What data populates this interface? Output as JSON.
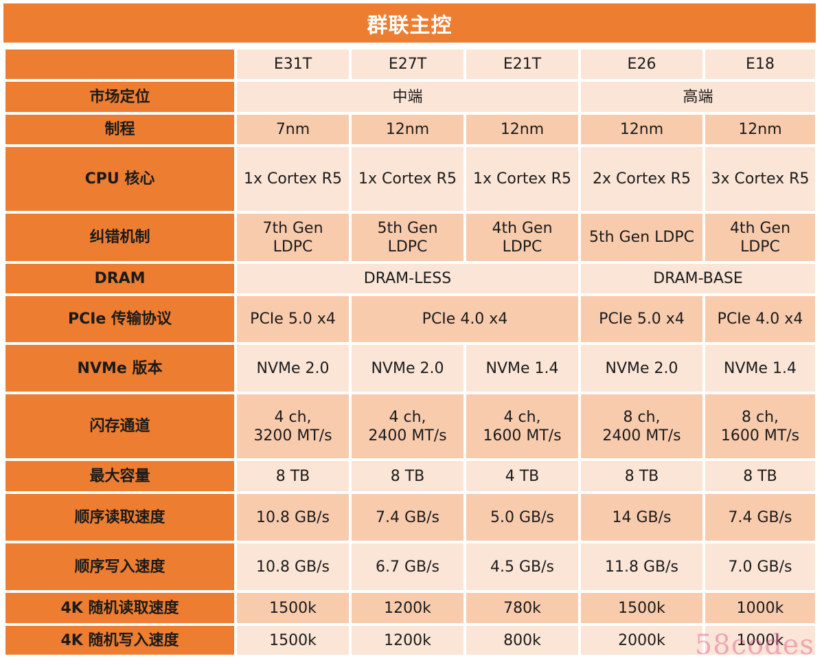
{
  "title": "群联主控",
  "columns": [
    "E31T",
    "E27T",
    "E21T",
    "E26",
    "E18"
  ],
  "rows": {
    "market": {
      "label": "市场定位",
      "mid": "中端",
      "high": "高端"
    },
    "process": {
      "label": "制程",
      "values": [
        "7nm",
        "12nm",
        "12nm",
        "12nm",
        "12nm"
      ]
    },
    "cpu": {
      "label": "CPU 核心",
      "values": [
        "1x Cortex R5",
        "1x Cortex R5",
        "1x Cortex R5",
        "2x Cortex R5",
        "3x Cortex R5"
      ]
    },
    "ecc": {
      "label": "纠错机制",
      "e31t": [
        "7th Gen",
        "LDPC"
      ],
      "e27t": [
        "5th Gen",
        "LDPC"
      ],
      "e21t": [
        "4th Gen",
        "LDPC"
      ],
      "e26": "5th Gen LDPC",
      "e18": [
        "4th Gen",
        "LDPC"
      ]
    },
    "dram": {
      "label": "DRAM",
      "left": "DRAM-LESS",
      "right": "DRAM-BASE"
    },
    "pcie": {
      "label": "PCIe 传输协议",
      "e31t": "PCIe 5.0 x4",
      "e27t_e21t": "PCIe 4.0 x4",
      "e26": "PCIe 5.0 x4",
      "e18": "PCIe 4.0 x4"
    },
    "nvme": {
      "label": "NVMe 版本",
      "values": [
        "NVMe 2.0",
        "NVMe 2.0",
        "NVMe 1.4",
        "NVMe 2.0",
        "NVMe 1.4"
      ]
    },
    "channels": {
      "label": "闪存通道",
      "values": [
        [
          "4 ch,",
          "3200 MT/s"
        ],
        [
          "4 ch,",
          "2400 MT/s"
        ],
        [
          "4 ch,",
          "1600 MT/s"
        ],
        [
          "8 ch,",
          "2400 MT/s"
        ],
        [
          "8 ch,",
          "1600 MT/s"
        ]
      ]
    },
    "capacity": {
      "label": "最大容量",
      "values": [
        "8 TB",
        "8 TB",
        "4 TB",
        "8 TB",
        "8 TB"
      ]
    },
    "seq_read": {
      "label": "顺序读取速度",
      "values": [
        "10.8 GB/s",
        "7.4 GB/s",
        "5.0 GB/s",
        "14 GB/s",
        "7.4 GB/s"
      ]
    },
    "seq_write": {
      "label": "顺序写入速度",
      "values": [
        "10.8 GB/s",
        "6.7 GB/s",
        "4.5 GB/s",
        "11.8 GB/s",
        "7.0 GB/s"
      ]
    },
    "rand_read": {
      "label": "4K 随机读取速度",
      "values": [
        "1500k",
        "1200k",
        "780k",
        "1500k",
        "1000k"
      ]
    },
    "rand_write": {
      "label": "4K 随机写入速度",
      "values": [
        "1500k",
        "1200k",
        "800k",
        "2000k",
        "1000k"
      ]
    }
  },
  "watermark": "58codes",
  "colors": {
    "accent": "#ED7D31",
    "cell_dark": "#F8CBAD",
    "cell_light": "#FBE5D6"
  }
}
